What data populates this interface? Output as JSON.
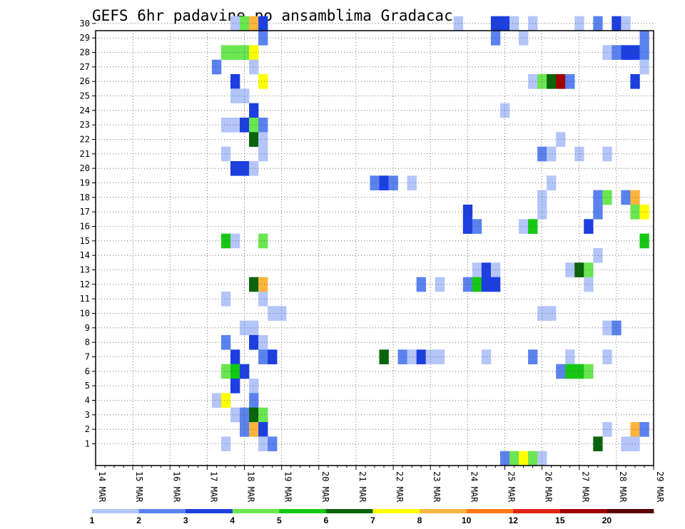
{
  "chart_data": {
    "type": "heatmap",
    "title": "GEFS 6hr padavine po ansamblima Gradacac",
    "x_labels": [
      "14 MAR",
      "15 MAR",
      "16 MAR",
      "17 MAR",
      "18 MAR",
      "19 MAR",
      "20 MAR",
      "21 MAR",
      "22 MAR",
      "23 MAR",
      "24 MAR",
      "25 MAR",
      "26 MAR",
      "27 MAR",
      "28 MAR",
      "29 MAR"
    ],
    "y_labels": [
      "1",
      "2",
      "3",
      "4",
      "5",
      "6",
      "7",
      "8",
      "9",
      "10",
      "11",
      "12",
      "13",
      "14",
      "15",
      "16",
      "17",
      "18",
      "19",
      "20",
      "21",
      "22",
      "23",
      "24",
      "25",
      "26",
      "27",
      "28",
      "29",
      "30"
    ],
    "grid": true,
    "legend_placement": "bottom",
    "legend": {
      "labels": [
        "1",
        "2",
        "3",
        "4",
        "5",
        "6",
        "7",
        "8",
        "10",
        "12",
        "15",
        "20"
      ],
      "colors": [
        "#b4c5fa",
        "#5a82f0",
        "#1c3fe0",
        "#6ae650",
        "#14c814",
        "#0a640a",
        "#ffff00",
        "#ffb43c",
        "#ff7814",
        "#e12314",
        "#a00000",
        "#5a0000"
      ]
    },
    "colors": {
      "1": "#b4c5fa",
      "2": "#5a82f0",
      "3": "#1c3fe0",
      "4": "#6ae650",
      "5": "#14c814",
      "6": "#0a640a",
      "7": "#ffff00",
      "8": "#ffb43c",
      "10": "#ff7814",
      "12": "#e12314",
      "15": "#a00000",
      "20": "#5a0000"
    },
    "cells": [
      [
        30,
        17.75,
        1
      ],
      [
        30,
        18.0,
        4
      ],
      [
        30,
        18.25,
        8
      ],
      [
        30,
        18.5,
        3
      ],
      [
        30,
        23.75,
        1
      ],
      [
        30,
        24.75,
        3
      ],
      [
        30,
        25.0,
        3
      ],
      [
        30,
        25.25,
        1
      ],
      [
        30,
        25.75,
        1
      ],
      [
        30,
        27.0,
        1
      ],
      [
        30,
        27.5,
        2
      ],
      [
        30,
        28.0,
        3
      ],
      [
        30,
        28.25,
        1
      ],
      [
        29,
        18.5,
        2
      ],
      [
        29,
        24.75,
        2
      ],
      [
        29,
        25.5,
        1
      ],
      [
        29,
        28.75,
        2
      ],
      [
        28,
        17.5,
        4
      ],
      [
        28,
        17.75,
        4
      ],
      [
        28,
        18.0,
        4
      ],
      [
        28,
        18.25,
        7
      ],
      [
        28,
        27.75,
        1
      ],
      [
        28,
        28.0,
        2
      ],
      [
        28,
        28.25,
        3
      ],
      [
        28,
        28.5,
        3
      ],
      [
        28,
        28.75,
        2
      ],
      [
        27,
        17.25,
        2
      ],
      [
        27,
        18.25,
        1
      ],
      [
        27,
        28.75,
        1
      ],
      [
        26,
        17.75,
        3
      ],
      [
        26,
        18.5,
        7
      ],
      [
        26,
        25.75,
        1
      ],
      [
        26,
        26.0,
        4
      ],
      [
        26,
        26.25,
        6
      ],
      [
        26,
        26.5,
        15
      ],
      [
        26,
        26.75,
        2
      ],
      [
        26,
        28.5,
        3
      ],
      [
        25,
        17.75,
        1
      ],
      [
        25,
        18.0,
        1
      ],
      [
        24,
        18.25,
        3
      ],
      [
        24,
        25.0,
        1
      ],
      [
        23,
        17.5,
        1
      ],
      [
        23,
        17.75,
        1
      ],
      [
        23,
        18.0,
        3
      ],
      [
        23,
        18.25,
        4
      ],
      [
        23,
        18.5,
        2
      ],
      [
        22,
        18.25,
        6
      ],
      [
        22,
        18.5,
        1
      ],
      [
        22,
        26.5,
        1
      ],
      [
        21,
        17.5,
        1
      ],
      [
        21,
        18.5,
        1
      ],
      [
        21,
        26.0,
        2
      ],
      [
        21,
        26.25,
        1
      ],
      [
        21,
        27.0,
        1
      ],
      [
        21,
        27.75,
        1
      ],
      [
        20,
        17.75,
        3
      ],
      [
        20,
        18.0,
        3
      ],
      [
        20,
        18.25,
        1
      ],
      [
        19,
        21.5,
        2
      ],
      [
        19,
        21.75,
        3
      ],
      [
        19,
        22.0,
        2
      ],
      [
        19,
        22.5,
        1
      ],
      [
        19,
        26.25,
        1
      ],
      [
        18,
        26.0,
        1
      ],
      [
        18,
        27.5,
        2
      ],
      [
        18,
        27.75,
        4
      ],
      [
        18,
        28.25,
        2
      ],
      [
        18,
        28.5,
        8
      ],
      [
        17,
        24.0,
        3
      ],
      [
        17,
        26.0,
        1
      ],
      [
        17,
        27.5,
        2
      ],
      [
        17,
        28.5,
        4
      ],
      [
        17,
        28.75,
        7
      ],
      [
        16,
        24.0,
        3
      ],
      [
        16,
        24.25,
        2
      ],
      [
        16,
        25.5,
        1
      ],
      [
        16,
        25.75,
        5
      ],
      [
        16,
        27.25,
        3
      ],
      [
        15,
        17.5,
        5
      ],
      [
        15,
        17.75,
        1
      ],
      [
        15,
        18.5,
        4
      ],
      [
        15,
        28.75,
        5
      ],
      [
        14,
        27.5,
        1
      ],
      [
        13,
        24.25,
        1
      ],
      [
        13,
        24.5,
        3
      ],
      [
        13,
        24.75,
        1
      ],
      [
        13,
        26.75,
        1
      ],
      [
        13,
        27.0,
        6
      ],
      [
        13,
        27.25,
        4
      ],
      [
        12,
        18.25,
        6
      ],
      [
        12,
        18.5,
        8
      ],
      [
        12,
        22.75,
        2
      ],
      [
        12,
        23.25,
        1
      ],
      [
        12,
        24.0,
        2
      ],
      [
        12,
        24.25,
        5
      ],
      [
        12,
        24.5,
        3
      ],
      [
        12,
        24.75,
        3
      ],
      [
        12,
        27.25,
        1
      ],
      [
        11,
        17.5,
        1
      ],
      [
        11,
        18.5,
        1
      ],
      [
        10,
        18.75,
        1
      ],
      [
        10,
        19.0,
        1
      ],
      [
        10,
        26.0,
        1
      ],
      [
        10,
        26.25,
        1
      ],
      [
        9,
        18.0,
        1
      ],
      [
        9,
        18.25,
        1
      ],
      [
        9,
        27.75,
        1
      ],
      [
        9,
        28.0,
        2
      ],
      [
        8,
        17.5,
        2
      ],
      [
        8,
        18.25,
        3
      ],
      [
        8,
        18.5,
        1
      ],
      [
        7,
        17.75,
        3
      ],
      [
        7,
        18.5,
        2
      ],
      [
        7,
        18.75,
        3
      ],
      [
        7,
        21.75,
        6
      ],
      [
        7,
        22.25,
        2
      ],
      [
        7,
        22.5,
        1
      ],
      [
        7,
        22.75,
        3
      ],
      [
        7,
        23.0,
        1
      ],
      [
        7,
        23.25,
        1
      ],
      [
        7,
        24.5,
        1
      ],
      [
        7,
        25.75,
        2
      ],
      [
        7,
        26.75,
        1
      ],
      [
        7,
        27.75,
        1
      ],
      [
        6,
        17.5,
        4
      ],
      [
        6,
        17.75,
        5
      ],
      [
        6,
        18.0,
        3
      ],
      [
        6,
        26.5,
        2
      ],
      [
        6,
        26.75,
        5
      ],
      [
        6,
        27.0,
        5
      ],
      [
        6,
        27.25,
        4
      ],
      [
        5,
        17.75,
        3
      ],
      [
        5,
        18.25,
        1
      ],
      [
        4,
        17.25,
        1
      ],
      [
        4,
        17.5,
        7
      ],
      [
        4,
        18.25,
        2
      ],
      [
        3,
        17.75,
        1
      ],
      [
        3,
        18.0,
        2
      ],
      [
        3,
        18.25,
        6
      ],
      [
        3,
        18.5,
        4
      ],
      [
        2,
        18.0,
        2
      ],
      [
        2,
        18.25,
        8
      ],
      [
        2,
        18.5,
        3
      ],
      [
        2,
        27.75,
        1
      ],
      [
        2,
        28.5,
        8
      ],
      [
        2,
        28.75,
        2
      ],
      [
        1,
        17.5,
        1
      ],
      [
        1,
        18.5,
        1
      ],
      [
        1,
        18.75,
        2
      ],
      [
        1,
        27.5,
        6
      ],
      [
        1,
        28.25,
        1
      ],
      [
        1,
        28.5,
        1
      ],
      [
        0,
        25.0,
        2
      ],
      [
        0,
        25.25,
        4
      ],
      [
        0,
        25.5,
        7
      ],
      [
        0,
        25.75,
        4
      ],
      [
        0,
        26.0,
        1
      ]
    ]
  }
}
